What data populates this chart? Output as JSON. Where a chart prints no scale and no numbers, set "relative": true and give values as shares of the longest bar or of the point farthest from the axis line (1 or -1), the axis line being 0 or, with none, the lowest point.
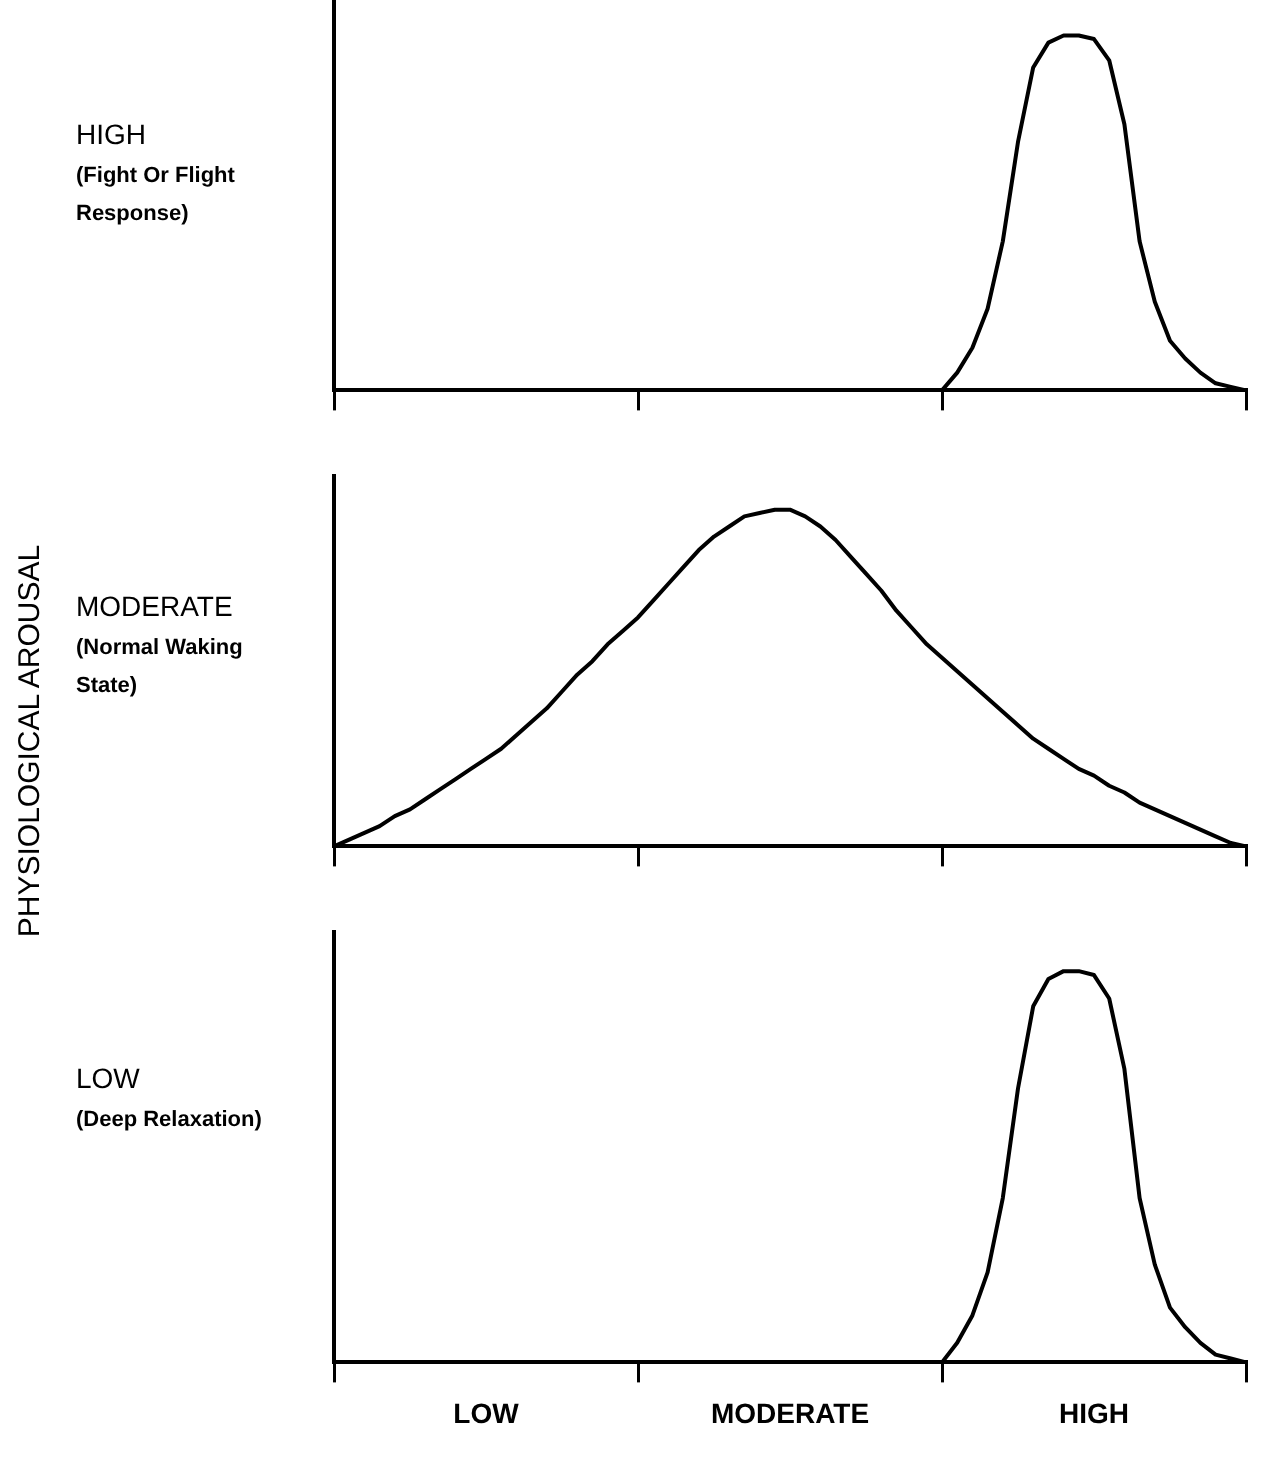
{
  "chart_data": [
    {
      "type": "line",
      "relative": true,
      "ylabel": "HIGH (Fight Or Flight Response)",
      "annotations": [
        "PHYSIOLOGICAL AROUSAL"
      ],
      "legend": false,
      "grid": false,
      "marker": "none",
      "categories": [
        null,
        null,
        null,
        null,
        null,
        null,
        null,
        null,
        null,
        null,
        null,
        null,
        null,
        null,
        null,
        null,
        null,
        null,
        null,
        null,
        null,
        null,
        null,
        null,
        null,
        null,
        null,
        null,
        null,
        null,
        null,
        null,
        null,
        null,
        null,
        null,
        null,
        null,
        null,
        null,
        null,
        null,
        null,
        null,
        null,
        null,
        null,
        null,
        null,
        null,
        null,
        null,
        null,
        null,
        null,
        null,
        null,
        null,
        null,
        null,
        null
      ],
      "series": [
        {
          "color": "#000000",
          "values": [
            0,
            0,
            0,
            0,
            0,
            0,
            0,
            0,
            0,
            0,
            0,
            0,
            0,
            0,
            0,
            0,
            0,
            0,
            0,
            0,
            0,
            0,
            0,
            0,
            0,
            0,
            0,
            0,
            0,
            0,
            0,
            0,
            0,
            0,
            0,
            0,
            0,
            0,
            0,
            0,
            0,
            0.05,
            0.12,
            0.23,
            0.42,
            0.7,
            0.91,
            0.98,
            1,
            1,
            0.99,
            0.93,
            0.75,
            0.42,
            0.25,
            0.14,
            0.09,
            0.05,
            0.02,
            0.01,
            0
          ]
        }
      ]
    },
    {
      "type": "line",
      "relative": true,
      "ylabel": "MODERATE (Normal Waking State)",
      "legend": false,
      "grid": false,
      "marker": "none",
      "categories": [
        null,
        null,
        null,
        null,
        null,
        null,
        null,
        null,
        null,
        null,
        null,
        null,
        null,
        null,
        null,
        null,
        null,
        null,
        null,
        null,
        null,
        null,
        null,
        null,
        null,
        null,
        null,
        null,
        null,
        null,
        null,
        null,
        null,
        null,
        null,
        null,
        null,
        null,
        null,
        null,
        null,
        null,
        null,
        null,
        null,
        null,
        null,
        null,
        null,
        null,
        null,
        null,
        null,
        null,
        null,
        null,
        null,
        null,
        null,
        null,
        null
      ],
      "series": [
        {
          "color": "#000000",
          "values": [
            0,
            0.02,
            0.04,
            0.06,
            0.09,
            0.11,
            0.14,
            0.17,
            0.2,
            0.23,
            0.26,
            0.29,
            0.33,
            0.37,
            0.41,
            0.46,
            0.51,
            0.55,
            0.6,
            0.64,
            0.68,
            0.73,
            0.78,
            0.83,
            0.88,
            0.92,
            0.95,
            0.98,
            0.99,
            1,
            1,
            0.98,
            0.95,
            0.91,
            0.86,
            0.81,
            0.76,
            0.7,
            0.65,
            0.6,
            0.56,
            0.52,
            0.48,
            0.44,
            0.4,
            0.36,
            0.32,
            0.29,
            0.26,
            0.23,
            0.21,
            0.18,
            0.16,
            0.13,
            0.11,
            0.09,
            0.07,
            0.05,
            0.03,
            0.01,
            0
          ]
        }
      ]
    },
    {
      "type": "line",
      "relative": true,
      "ylabel": "LOW (Deep Relaxation)",
      "tick_labels": "x",
      "legend": false,
      "grid": false,
      "marker": "none",
      "categories": [
        null,
        null,
        null,
        null,
        null,
        null,
        null,
        null,
        null,
        null,
        "LOW",
        null,
        null,
        null,
        null,
        null,
        null,
        null,
        null,
        null,
        null,
        null,
        null,
        null,
        null,
        null,
        null,
        null,
        null,
        null,
        "MODERATE",
        null,
        null,
        null,
        null,
        null,
        null,
        null,
        null,
        null,
        null,
        null,
        null,
        null,
        null,
        null,
        null,
        null,
        null,
        null,
        "HIGH",
        null,
        null,
        null,
        null,
        null,
        null,
        null,
        null,
        null,
        null
      ],
      "series": [
        {
          "color": "#000000",
          "values": [
            0,
            0,
            0,
            0,
            0,
            0,
            0,
            0,
            0,
            0,
            0,
            0,
            0,
            0,
            0,
            0,
            0,
            0,
            0,
            0,
            0,
            0,
            0,
            0,
            0,
            0,
            0,
            0,
            0,
            0,
            0,
            0,
            0,
            0,
            0,
            0,
            0,
            0,
            0,
            0,
            0,
            0.05,
            0.12,
            0.23,
            0.42,
            0.7,
            0.91,
            0.98,
            1,
            1,
            0.99,
            0.93,
            0.75,
            0.42,
            0.25,
            0.14,
            0.09,
            0.05,
            0.02,
            0.01,
            0
          ]
        }
      ]
    }
  ]
}
